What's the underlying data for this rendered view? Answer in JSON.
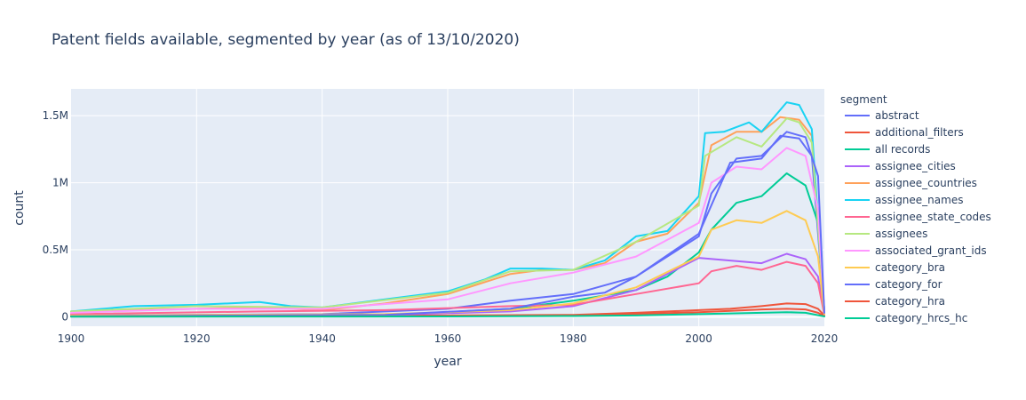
{
  "chart_data": {
    "type": "line",
    "title": "Patent fields available, segmented by year (as of 13/10/2020)",
    "xlabel": "year",
    "ylabel": "count",
    "xlim": [
      1900,
      2020
    ],
    "ylim": [
      -70000,
      1700000
    ],
    "x_ticks": [
      1900,
      1920,
      1940,
      1960,
      1980,
      2000,
      2020
    ],
    "x_tick_labels": [
      "1900",
      "1920",
      "1940",
      "1960",
      "1980",
      "2000",
      "2020"
    ],
    "y_ticks": [
      0,
      500000,
      1000000,
      1500000
    ],
    "y_tick_labels": [
      "0",
      "0.5M",
      "1M",
      "1.5M"
    ],
    "grid": true,
    "legend_title": "segment",
    "legend_position": "right",
    "series": [
      {
        "name": "abstract",
        "color": "#636efa",
        "points": [
          [
            1900,
            10000
          ],
          [
            1940,
            20000
          ],
          [
            1960,
            60000
          ],
          [
            1970,
            120000
          ],
          [
            1980,
            170000
          ],
          [
            1990,
            300000
          ],
          [
            2000,
            620000
          ],
          [
            2005,
            1150000
          ],
          [
            2010,
            1180000
          ],
          [
            2013,
            1350000
          ],
          [
            2016,
            1330000
          ],
          [
            2018,
            1200000
          ],
          [
            2020,
            30000
          ]
        ]
      },
      {
        "name": "additional_filters",
        "color": "#EF553B",
        "points": [
          [
            1900,
            5000
          ],
          [
            1960,
            10000
          ],
          [
            1980,
            15000
          ],
          [
            1990,
            30000
          ],
          [
            2000,
            50000
          ],
          [
            2005,
            60000
          ],
          [
            2010,
            80000
          ],
          [
            2014,
            100000
          ],
          [
            2017,
            95000
          ],
          [
            2019,
            60000
          ],
          [
            2020,
            10000
          ]
        ]
      },
      {
        "name": "all records",
        "color": "#00cc96",
        "points": [
          [
            1900,
            5000
          ],
          [
            1950,
            10000
          ],
          [
            1970,
            60000
          ],
          [
            1980,
            120000
          ],
          [
            1990,
            200000
          ],
          [
            1995,
            300000
          ],
          [
            2000,
            480000
          ],
          [
            2002,
            650000
          ],
          [
            2006,
            850000
          ],
          [
            2010,
            900000
          ],
          [
            2014,
            1070000
          ],
          [
            2017,
            980000
          ],
          [
            2019,
            700000
          ],
          [
            2020,
            30000
          ]
        ]
      },
      {
        "name": "assignee_cities",
        "color": "#ab63fa",
        "points": [
          [
            1900,
            5000
          ],
          [
            1950,
            15000
          ],
          [
            1970,
            40000
          ],
          [
            1980,
            80000
          ],
          [
            1990,
            200000
          ],
          [
            2000,
            440000
          ],
          [
            2005,
            420000
          ],
          [
            2010,
            400000
          ],
          [
            2014,
            470000
          ],
          [
            2017,
            430000
          ],
          [
            2019,
            300000
          ],
          [
            2020,
            15000
          ]
        ]
      },
      {
        "name": "assignee_countries",
        "color": "#FFA15A",
        "points": [
          [
            1900,
            40000
          ],
          [
            1920,
            60000
          ],
          [
            1930,
            70000
          ],
          [
            1940,
            50000
          ],
          [
            1950,
            100000
          ],
          [
            1960,
            170000
          ],
          [
            1966,
            260000
          ],
          [
            1970,
            320000
          ],
          [
            1975,
            350000
          ],
          [
            1980,
            350000
          ],
          [
            1985,
            400000
          ],
          [
            1990,
            560000
          ],
          [
            1995,
            620000
          ],
          [
            2000,
            850000
          ],
          [
            2002,
            1280000
          ],
          [
            2006,
            1380000
          ],
          [
            2010,
            1380000
          ],
          [
            2013,
            1490000
          ],
          [
            2016,
            1470000
          ],
          [
            2018,
            1350000
          ],
          [
            2020,
            40000
          ]
        ]
      },
      {
        "name": "assignee_names",
        "color": "#19d3f3",
        "points": [
          [
            1900,
            40000
          ],
          [
            1910,
            80000
          ],
          [
            1920,
            90000
          ],
          [
            1930,
            110000
          ],
          [
            1935,
            80000
          ],
          [
            1940,
            70000
          ],
          [
            1950,
            130000
          ],
          [
            1960,
            190000
          ],
          [
            1966,
            280000
          ],
          [
            1970,
            360000
          ],
          [
            1975,
            360000
          ],
          [
            1980,
            350000
          ],
          [
            1985,
            420000
          ],
          [
            1990,
            600000
          ],
          [
            1995,
            640000
          ],
          [
            2000,
            900000
          ],
          [
            2001,
            1370000
          ],
          [
            2004,
            1380000
          ],
          [
            2008,
            1450000
          ],
          [
            2010,
            1380000
          ],
          [
            2014,
            1600000
          ],
          [
            2016,
            1580000
          ],
          [
            2018,
            1400000
          ],
          [
            2020,
            40000
          ]
        ]
      },
      {
        "name": "assignee_state_codes",
        "color": "#FF6692",
        "points": [
          [
            1900,
            20000
          ],
          [
            1930,
            40000
          ],
          [
            1950,
            50000
          ],
          [
            1970,
            80000
          ],
          [
            1980,
            90000
          ],
          [
            1990,
            170000
          ],
          [
            2000,
            250000
          ],
          [
            2002,
            340000
          ],
          [
            2006,
            380000
          ],
          [
            2010,
            350000
          ],
          [
            2014,
            410000
          ],
          [
            2017,
            380000
          ],
          [
            2019,
            250000
          ],
          [
            2020,
            15000
          ]
        ]
      },
      {
        "name": "assignees",
        "color": "#B6E880",
        "points": [
          [
            1900,
            40000
          ],
          [
            1920,
            80000
          ],
          [
            1940,
            70000
          ],
          [
            1960,
            180000
          ],
          [
            1970,
            340000
          ],
          [
            1980,
            350000
          ],
          [
            1990,
            560000
          ],
          [
            2000,
            830000
          ],
          [
            2001,
            1200000
          ],
          [
            2006,
            1340000
          ],
          [
            2010,
            1270000
          ],
          [
            2014,
            1480000
          ],
          [
            2016,
            1450000
          ],
          [
            2018,
            1300000
          ],
          [
            2020,
            40000
          ]
        ]
      },
      {
        "name": "associated_grant_ids",
        "color": "#FF97FF",
        "points": [
          [
            1900,
            30000
          ],
          [
            1920,
            60000
          ],
          [
            1940,
            60000
          ],
          [
            1960,
            130000
          ],
          [
            1970,
            250000
          ],
          [
            1980,
            330000
          ],
          [
            1990,
            450000
          ],
          [
            2000,
            700000
          ],
          [
            2002,
            1000000
          ],
          [
            2006,
            1120000
          ],
          [
            2010,
            1100000
          ],
          [
            2014,
            1260000
          ],
          [
            2017,
            1200000
          ],
          [
            2019,
            800000
          ],
          [
            2020,
            30000
          ]
        ]
      },
      {
        "name": "category_bra",
        "color": "#FECB52",
        "points": [
          [
            1900,
            10000
          ],
          [
            1950,
            20000
          ],
          [
            1970,
            50000
          ],
          [
            1980,
            100000
          ],
          [
            1990,
            220000
          ],
          [
            2000,
            450000
          ],
          [
            2002,
            650000
          ],
          [
            2006,
            720000
          ],
          [
            2010,
            700000
          ],
          [
            2014,
            790000
          ],
          [
            2017,
            720000
          ],
          [
            2019,
            450000
          ],
          [
            2020,
            20000
          ]
        ]
      },
      {
        "name": "category_for",
        "color": "#636efa",
        "points": [
          [
            1900,
            5000
          ],
          [
            1950,
            15000
          ],
          [
            1970,
            60000
          ],
          [
            1980,
            150000
          ],
          [
            1985,
            180000
          ],
          [
            1990,
            300000
          ],
          [
            2000,
            600000
          ],
          [
            2002,
            920000
          ],
          [
            2006,
            1180000
          ],
          [
            2010,
            1200000
          ],
          [
            2014,
            1380000
          ],
          [
            2017,
            1340000
          ],
          [
            2019,
            1050000
          ],
          [
            2020,
            30000
          ]
        ]
      },
      {
        "name": "category_hra",
        "color": "#EF553B",
        "points": [
          [
            1900,
            2000
          ],
          [
            1960,
            5000
          ],
          [
            1980,
            10000
          ],
          [
            1990,
            20000
          ],
          [
            2000,
            35000
          ],
          [
            2005,
            45000
          ],
          [
            2010,
            55000
          ],
          [
            2014,
            60000
          ],
          [
            2017,
            55000
          ],
          [
            2019,
            30000
          ],
          [
            2020,
            5000
          ]
        ]
      },
      {
        "name": "category_hrcs_hc",
        "color": "#00cc96",
        "points": [
          [
            1900,
            1000
          ],
          [
            1960,
            3000
          ],
          [
            1980,
            6000
          ],
          [
            1990,
            10000
          ],
          [
            2000,
            20000
          ],
          [
            2010,
            30000
          ],
          [
            2014,
            35000
          ],
          [
            2017,
            30000
          ],
          [
            2020,
            3000
          ]
        ]
      }
    ]
  }
}
